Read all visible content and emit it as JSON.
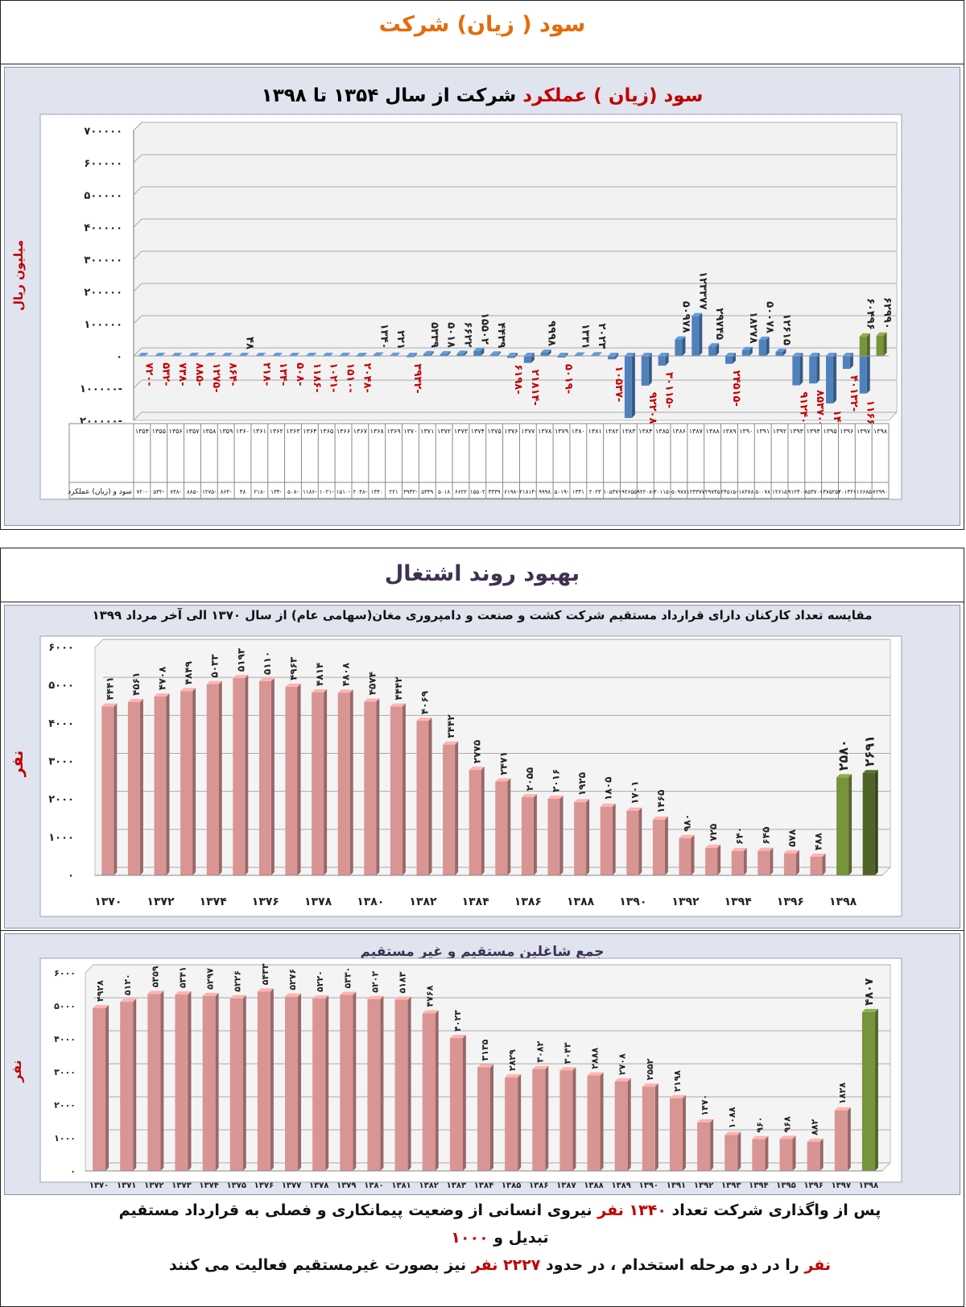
{
  "section1": {
    "title": "سود ( زیان) شرکت",
    "title_color": "#e46c0a"
  },
  "section2": {
    "title": "بهبود روند اشتغال",
    "title_color": "#3f3151"
  },
  "chart1_title": {
    "part1": "سود (زیان ) عملکرد",
    "part2": " شرکت از سال ۱۳۵۴ تا ۱۳۹۸"
  },
  "chart_data": [
    {
      "type": "bar",
      "title": "سود (زیان ) عملکرد شرکت از سال ۱۳۵۴ تا ۱۳۹۸",
      "ylabel": "میلیون ریال",
      "ylim": [
        -200000,
        700000
      ],
      "yticks": [
        "۷۰۰۰۰۰",
        "۶۰۰۰۰۰",
        "۵۰۰۰۰۰",
        "۴۰۰۰۰۰",
        "۳۰۰۰۰۰",
        "۲۰۰۰۰۰",
        "۱۰۰۰۰۰",
        "۰",
        "۱۰۰۰۰۰-",
        "۲۰۰۰۰۰-"
      ],
      "table_row_label": "سود و (زیان) عملکرد",
      "categories": [
        "۱۳۵۴",
        "۱۳۵۵",
        "۱۳۵۶",
        "۱۳۵۷",
        "۱۳۵۸",
        "۱۳۵۹",
        "۱۳۶۰",
        "۱۳۶۱",
        "۱۳۶۲",
        "۱۳۶۳",
        "۱۳۶۴",
        "۱۳۶۵",
        "۱۳۶۶",
        "۱۳۶۷",
        "۱۳۶۸",
        "۱۳۶۹",
        "۱۳۷۰",
        "۱۳۷۱",
        "۱۳۷۲",
        "۱۳۷۳",
        "۱۳۷۴",
        "۱۳۷۵",
        "۱۳۷۶",
        "۱۳۷۷",
        "۱۳۷۸",
        "۱۳۷۹",
        "۱۳۸۰",
        "۱۳۸۱",
        "۱۳۸۲",
        "۱۳۸۳",
        "۱۳۸۴",
        "۱۳۸۵",
        "۱۳۸۶",
        "۱۳۸۷",
        "۱۳۸۸",
        "۱۳۸۹",
        "۱۳۹۰",
        "۱۳۹۱",
        "۱۳۹۲",
        "۱۳۹۳",
        "۱۳۹۴",
        "۱۳۹۵",
        "۱۳۹۶",
        "۱۳۹۷",
        "۱۳۹۸"
      ],
      "values": [
        -720,
        -532,
        -738,
        -885,
        -1275,
        -864,
        48,
        -218,
        -134,
        -508,
        -1186,
        -1021,
        -1510,
        -2048,
        1340,
        221,
        -3932,
        5339,
        5018,
        6622,
        15502,
        4439,
        -6198,
        -21814,
        9998,
        -5019,
        1331,
        2023,
        -10537,
        -192655,
        -92208,
        -30115,
        50978,
        123377,
        29745,
        -24515,
        18278,
        50078,
        12615,
        -91240,
        -85370,
        -147525,
        -40132,
        -116685,
        62990
      ],
      "labels": [
        "۷۲۰-",
        "۵۳۲-",
        "۷۳۸-",
        "۸۸۵-",
        "۱۲۷۵-",
        "۸۶۴-",
        "۴۸",
        "۲۱۸-",
        "۱۳۴-",
        "۵۰۸-",
        "۱۱۸۶-",
        "۱۰۲۱-",
        "۱۵۱۰-",
        "۲۰۴۸-",
        "۱۳۴۰",
        "۲۲۱",
        "۳۹۳۲-",
        "۵۳۳۹",
        "۵۰۱۸",
        "۶۶۲۲",
        "۱۵۵۰۲",
        "۴۴۳۹",
        "۶۱۹۸-",
        "۲۱۸۱۴-",
        "۹۹۹۸",
        "۵۰۱۹-",
        "۱۳۳۱",
        "۲۰۲۳",
        "۱۰۵۳۷-",
        "۱۹۲۶۵۵-",
        "۹۲۲۰۸-",
        "۳۰۱۱۵-",
        "۵۰۹۷۸",
        "۱۲۳۳۷۷",
        "۲۹۷۴۵",
        "۲۴۵۱۵-",
        "۱۸۲۷۸",
        "۵۰۰۷۸",
        "۱۲۶۱۵",
        "۹۱۲۴۰-",
        "۸۵۳۷۰-",
        "۱۴۷۵۲۵-",
        "۴۰۱۳۲-",
        "۱۱۶۶۸۵-",
        "۶۲۹۹۰"
      ],
      "extra": {
        "value": 60496,
        "label": "۶۰۴۹۶",
        "color": "#77933c"
      },
      "positive_color": "#4f81bd",
      "last_color": "#77933c",
      "negative_label_color": "#c00000"
    },
    {
      "type": "bar",
      "title": "مقایسه تعداد کارکنان  دارای قرارداد مستقیم شرکت کشت و صنعت و دامپروری مغان(سهامی عام) از سال ۱۳۷۰ الی آخر مرداد ۱۳۹۹",
      "ylabel": "نفر",
      "ylim": [
        0,
        6000
      ],
      "yticks": [
        "۶۰۰۰",
        "۵۰۰۰",
        "۴۰۰۰",
        "۳۰۰۰",
        "۲۰۰۰",
        "۱۰۰۰",
        "۰"
      ],
      "xticks": [
        "۱۳۷۰",
        "۱۳۷۲",
        "۱۳۷۴",
        "۱۳۷۶",
        "۱۳۷۸",
        "۱۳۸۰",
        "۱۳۸۲",
        "۱۳۸۴",
        "۱۳۸۶",
        "۱۳۸۸",
        "۱۳۹۰",
        "۱۳۹۲",
        "۱۳۹۴",
        "۱۳۹۶",
        "۱۳۹۸"
      ],
      "values": [
        4441,
        4561,
        4708,
        4849,
        5033,
        5193,
        5110,
        4963,
        4814,
        4808,
        4574,
        4442,
        4069,
        3442,
        2775,
        2471,
        2055,
        2016,
        1925,
        1805,
        1701,
        1465,
        980,
        725,
        640,
        645,
        578,
        488,
        2580,
        2691
      ],
      "labels": [
        "۴۴۴۱",
        "۴۵۶۱",
        "۴۷۰۸",
        "۴۸۴۹",
        "۵۰۳۳",
        "۵۱۹۳",
        "۵۱۱۰",
        "۴۹۶۳",
        "۴۸۱۴",
        "۴۸۰۸",
        "۴۵۷۴",
        "۴۴۴۲",
        "۴۰۶۹",
        "۳۴۴۲",
        "۲۷۷۵",
        "۲۴۷۱",
        "۲۰۵۵",
        "۲۰۱۶",
        "۱۹۲۵",
        "۱۸۰۵",
        "۱۷۰۱",
        "۱۴۶۵",
        "۹۸۰",
        "۷۲۵",
        "۶۴۰",
        "۶۴۵",
        "۵۷۸",
        "۴۸۸",
        "۲۵۸۰",
        "۲۶۹۱"
      ],
      "colors": {
        "main": "#d99594",
        "green": "#77933c",
        "dark_green": "#4f6228"
      }
    },
    {
      "type": "bar",
      "title": "جمع شاغلین مستقیم و غیر مستقیم",
      "ylabel": "نفر",
      "ylim": [
        0,
        6000
      ],
      "yticks": [
        "۶۰۰۰",
        "۵۰۰۰",
        "۴۰۰۰",
        "۳۰۰۰",
        "۲۰۰۰",
        "۱۰۰۰",
        "۰"
      ],
      "categories": [
        "۱۳۷۰",
        "۱۳۷۱",
        "۱۳۷۲",
        "۱۳۷۳",
        "۱۳۷۴",
        "۱۳۷۵",
        "۱۳۷۶",
        "۱۳۷۷",
        "۱۳۷۸",
        "۱۳۷۹",
        "۱۳۸۰",
        "۱۳۸۱",
        "۱۳۸۲",
        "۱۳۸۳",
        "۱۳۸۴",
        "۱۳۸۵",
        "۱۳۸۶",
        "۱۳۸۷",
        "۱۳۸۸",
        "۱۳۸۹",
        "۱۳۹۰",
        "۱۳۹۱",
        "۱۳۹۲",
        "۱۳۹۳",
        "۱۳۹۴",
        "۱۳۹۵",
        "۱۳۹۶",
        "۱۳۹۷",
        "۱۳۹۸"
      ],
      "values": [
        4928,
        5120,
        5359,
        5341,
        5297,
        5226,
        5433,
        5276,
        5220,
        5330,
        5202,
        5183,
        4768,
        4023,
        3135,
        2829,
        3082,
        3043,
        2888,
        2708,
        2552,
        2198,
        1470,
        1088,
        960,
        968,
        882,
        1828,
        4807
      ],
      "labels": [
        "۴۹۲۸",
        "۵۱۲۰",
        "۵۳۵۹",
        "۵۳۴۱",
        "۵۲۹۷",
        "۵۲۲۶",
        "۵۴۳۳",
        "۵۲۷۶",
        "۵۲۲۰",
        "۵۳۳۰",
        "۵۲۰۲",
        "۵۱۸۳",
        "۴۷۶۸",
        "۴۰۲۳",
        "۳۱۳۵",
        "۲۸۲۹",
        "۳۰۸۲",
        "۳۰۴۳",
        "۲۸۸۸",
        "۲۷۰۸",
        "۲۵۵۲",
        "۲۱۹۸",
        "۱۴۷۰",
        "۱۰۸۸",
        "۹۶۰",
        "۹۶۸",
        "۸۸۲",
        "۱۸۲۸",
        "۴۸۰۷"
      ],
      "colors": {
        "main": "#d99594",
        "green": "#77933c"
      }
    }
  ],
  "note": {
    "a1": "پس از واگذاری شرکت تعداد ",
    "a2": "۱۳۴۰ نفر",
    "a3": " نیروی انسانی از وضعیت پیمانکاری و فصلی  به قرارداد مستقیم تبدیل و ",
    "a4": "۱۰۰۰",
    "b1": "نفر",
    "b2": " را در دو مرحله استخدام ، در حدود ",
    "b3": "۲۲۲۷ نفر",
    "b4": " نیز بصورت غیرمستقیم فعالیت می کنند"
  }
}
